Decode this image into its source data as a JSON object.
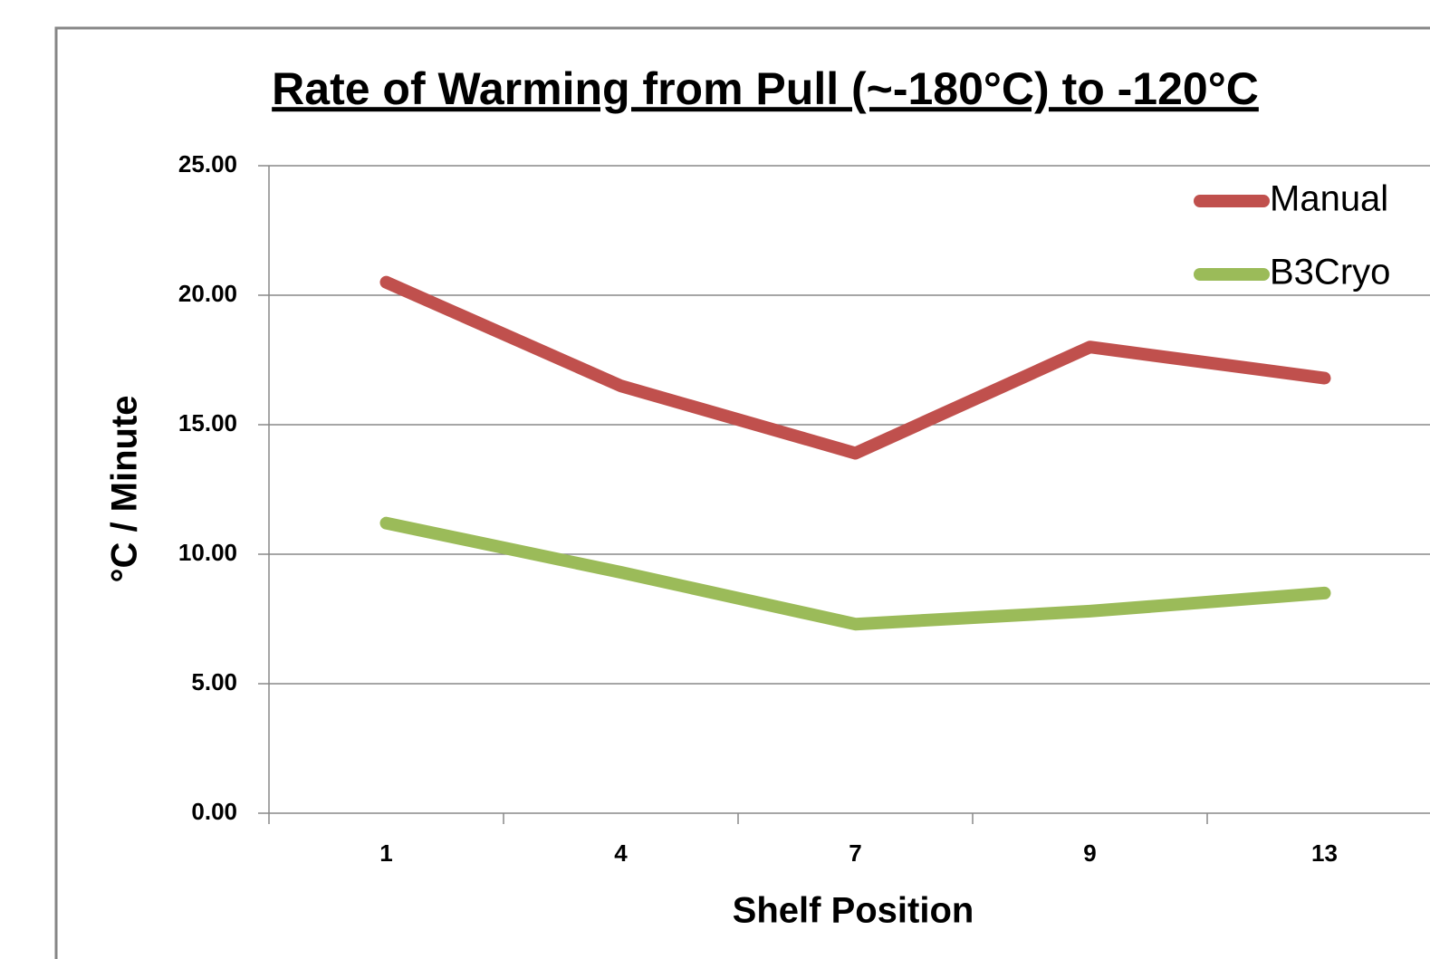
{
  "chart_data": {
    "type": "line",
    "title": "Rate of Warming from Pull (~-180°C) to -120°C",
    "x_label": "Shelf Position",
    "y_label": "°C / Minute",
    "categories": [
      "1",
      "4",
      "7",
      "9",
      "13"
    ],
    "series": [
      {
        "name": "Manual",
        "color": "#c0504d",
        "values": [
          20.5,
          16.5,
          13.9,
          18.0,
          16.8
        ]
      },
      {
        "name": "B3Cryo",
        "color": "#9bbb59",
        "values": [
          11.2,
          9.3,
          7.3,
          7.8,
          8.5
        ]
      }
    ],
    "ylim": [
      0,
      25
    ],
    "yticks": [
      {
        "value": 0,
        "label": "0.00"
      },
      {
        "value": 5,
        "label": "5.00"
      },
      {
        "value": 10,
        "label": "10.00"
      },
      {
        "value": 15,
        "label": "15.00"
      },
      {
        "value": 20,
        "label": "20.00"
      },
      {
        "value": 25,
        "label": "25.00"
      }
    ],
    "grid": true,
    "legend": "top-right"
  }
}
